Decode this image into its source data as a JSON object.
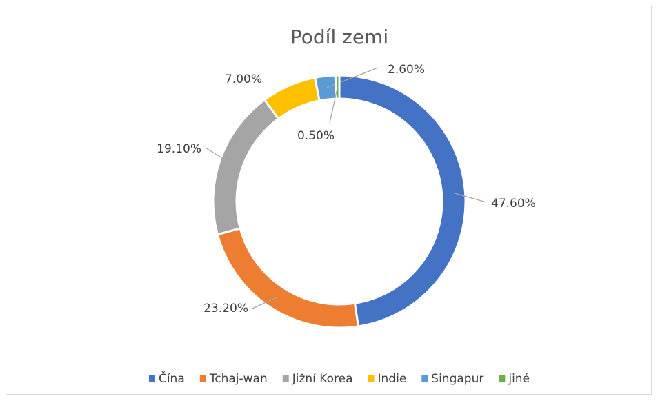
{
  "chart_data": {
    "type": "donut",
    "title": "Podíl zemi",
    "categories": [
      "Čína",
      "Tchaj-wan",
      "Jižní Korea",
      "Indie",
      "Singapur",
      "jiné"
    ],
    "values": [
      47.6,
      23.2,
      19.1,
      7.0,
      2.6,
      0.5
    ],
    "value_labels": [
      "47.60%",
      "23.20%",
      "19.10%",
      "7.00%",
      "2.60%",
      "0.50%"
    ],
    "colors": [
      "#4472c4",
      "#ed7d31",
      "#a5a5a5",
      "#ffc000",
      "#5b9bd5",
      "#70ad47"
    ],
    "legend": "bottom"
  }
}
